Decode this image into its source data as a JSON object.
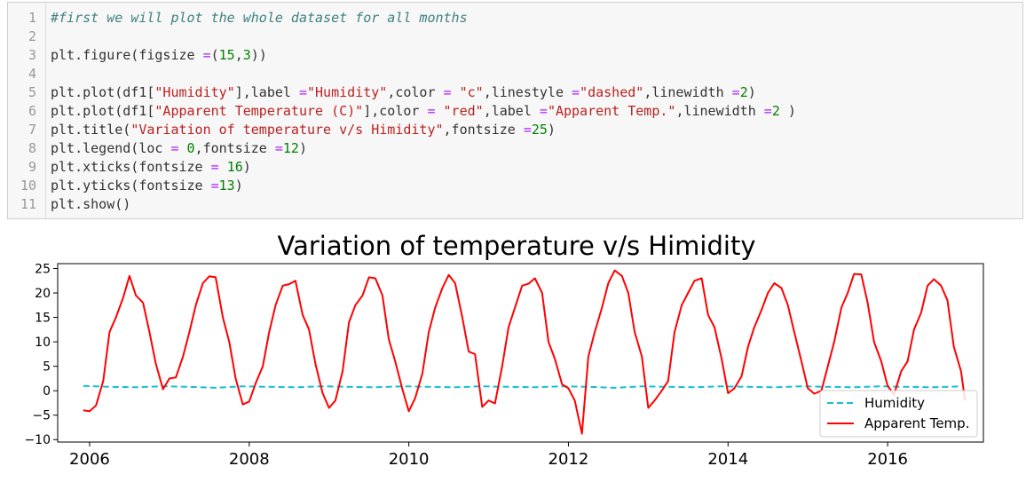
{
  "code_cell": {
    "lines": [
      {
        "n": "1",
        "parts": [
          {
            "t": "#first we will plot the whole dataset for all months",
            "c": "cmt"
          }
        ]
      },
      {
        "n": "2",
        "parts": []
      },
      {
        "n": "3",
        "parts": [
          {
            "t": "plt.figure(figsize ",
            "c": ""
          },
          {
            "t": "=",
            "c": "op"
          },
          {
            "t": "(",
            "c": ""
          },
          {
            "t": "15",
            "c": "num"
          },
          {
            "t": ",",
            "c": ""
          },
          {
            "t": "3",
            "c": "num"
          },
          {
            "t": "))",
            "c": ""
          }
        ]
      },
      {
        "n": "4",
        "parts": []
      },
      {
        "n": "5",
        "parts": [
          {
            "t": "plt.plot(df1[",
            "c": ""
          },
          {
            "t": "\"Humidity\"",
            "c": "str"
          },
          {
            "t": "],label ",
            "c": ""
          },
          {
            "t": "=",
            "c": "op"
          },
          {
            "t": "\"Humidity\"",
            "c": "str"
          },
          {
            "t": ",color ",
            "c": ""
          },
          {
            "t": "=",
            "c": "op"
          },
          {
            "t": " ",
            "c": ""
          },
          {
            "t": "\"c\"",
            "c": "str"
          },
          {
            "t": ",linestyle ",
            "c": ""
          },
          {
            "t": "=",
            "c": "op"
          },
          {
            "t": "\"dashed\"",
            "c": "str"
          },
          {
            "t": ",linewidth ",
            "c": ""
          },
          {
            "t": "=",
            "c": "op"
          },
          {
            "t": "2",
            "c": "num"
          },
          {
            "t": ")",
            "c": ""
          }
        ]
      },
      {
        "n": "6",
        "parts": [
          {
            "t": "plt.plot(df1[",
            "c": ""
          },
          {
            "t": "\"Apparent Temperature (C)\"",
            "c": "str"
          },
          {
            "t": "],color ",
            "c": ""
          },
          {
            "t": "=",
            "c": "op"
          },
          {
            "t": " ",
            "c": ""
          },
          {
            "t": "\"red\"",
            "c": "str"
          },
          {
            "t": ",label ",
            "c": ""
          },
          {
            "t": "=",
            "c": "op"
          },
          {
            "t": "\"Apparent Temp.\"",
            "c": "str"
          },
          {
            "t": ",linewidth ",
            "c": ""
          },
          {
            "t": "=",
            "c": "op"
          },
          {
            "t": "2",
            "c": "num"
          },
          {
            "t": " )",
            "c": ""
          }
        ]
      },
      {
        "n": "7",
        "parts": [
          {
            "t": "plt.title(",
            "c": ""
          },
          {
            "t": "\"Variation of temperature v/s Himidity\"",
            "c": "str"
          },
          {
            "t": ",fontsize ",
            "c": ""
          },
          {
            "t": "=",
            "c": "op"
          },
          {
            "t": "25",
            "c": "num"
          },
          {
            "t": ")",
            "c": ""
          }
        ]
      },
      {
        "n": "8",
        "parts": [
          {
            "t": "plt.legend(loc ",
            "c": ""
          },
          {
            "t": "=",
            "c": "op"
          },
          {
            "t": " ",
            "c": ""
          },
          {
            "t": "0",
            "c": "num"
          },
          {
            "t": ",fontsize ",
            "c": ""
          },
          {
            "t": "=",
            "c": "op"
          },
          {
            "t": "12",
            "c": "num"
          },
          {
            "t": ")",
            "c": ""
          }
        ]
      },
      {
        "n": "9",
        "parts": [
          {
            "t": "plt.xticks(fontsize ",
            "c": ""
          },
          {
            "t": "=",
            "c": "op"
          },
          {
            "t": " ",
            "c": ""
          },
          {
            "t": "16",
            "c": "num"
          },
          {
            "t": ")",
            "c": ""
          }
        ]
      },
      {
        "n": "10",
        "parts": [
          {
            "t": "plt.yticks(fontsize ",
            "c": ""
          },
          {
            "t": "=",
            "c": "op"
          },
          {
            "t": "13",
            "c": "num"
          },
          {
            "t": ")",
            "c": ""
          }
        ]
      },
      {
        "n": "11",
        "parts": [
          {
            "t": "plt.show()",
            "c": ""
          }
        ]
      }
    ]
  },
  "chart_data": {
    "type": "line",
    "title": "Variation of temperature v/s Himidity",
    "xlabel": "",
    "ylabel": "",
    "xlim": [
      2005.6,
      2017.2
    ],
    "ylim": [
      -10.5,
      26
    ],
    "grid": false,
    "legend_position": "bottom-right",
    "x_ticks": [
      {
        "v": 2006,
        "label": "2006"
      },
      {
        "v": 2008,
        "label": "2008"
      },
      {
        "v": 2010,
        "label": "2010"
      },
      {
        "v": 2012,
        "label": "2012"
      },
      {
        "v": 2014,
        "label": "2014"
      },
      {
        "v": 2016,
        "label": "2016"
      }
    ],
    "y_ticks": [
      {
        "v": 25,
        "label": "25"
      },
      {
        "v": 20,
        "label": "20"
      },
      {
        "v": 15,
        "label": "15"
      },
      {
        "v": 10,
        "label": "10"
      },
      {
        "v": 5,
        "label": "5"
      },
      {
        "v": 0,
        "label": "0"
      },
      {
        "v": -5,
        "label": "−5"
      },
      {
        "v": -10,
        "label": "−10"
      }
    ],
    "series": [
      {
        "name": "Humidity",
        "color": "#17becf",
        "dash": "dashed",
        "points": [
          [
            2005.92,
            1.0
          ],
          [
            2006.25,
            0.8
          ],
          [
            2006.58,
            0.7
          ],
          [
            2006.92,
            0.9
          ],
          [
            2007.25,
            0.8
          ],
          [
            2007.58,
            0.6
          ],
          [
            2007.92,
            0.9
          ],
          [
            2008.25,
            0.8
          ],
          [
            2008.58,
            0.7
          ],
          [
            2008.92,
            0.9
          ],
          [
            2009.25,
            0.8
          ],
          [
            2009.58,
            0.7
          ],
          [
            2009.92,
            0.9
          ],
          [
            2010.25,
            0.8
          ],
          [
            2010.58,
            0.7
          ],
          [
            2010.92,
            0.9
          ],
          [
            2011.25,
            0.8
          ],
          [
            2011.58,
            0.7
          ],
          [
            2011.92,
            0.9
          ],
          [
            2012.25,
            0.8
          ],
          [
            2012.58,
            0.6
          ],
          [
            2012.92,
            0.9
          ],
          [
            2013.25,
            0.8
          ],
          [
            2013.58,
            0.7
          ],
          [
            2013.92,
            0.9
          ],
          [
            2014.25,
            0.8
          ],
          [
            2014.58,
            0.7
          ],
          [
            2014.92,
            0.9
          ],
          [
            2015.25,
            0.8
          ],
          [
            2015.58,
            0.7
          ],
          [
            2015.92,
            0.9
          ],
          [
            2016.25,
            0.8
          ],
          [
            2016.58,
            0.7
          ],
          [
            2016.92,
            0.9
          ]
        ]
      },
      {
        "name": "Apparent Temp.",
        "color": "#ff0000",
        "dash": "solid",
        "points": [
          [
            2005.92,
            -4.0
          ],
          [
            2006.0,
            -4.2
          ],
          [
            2006.08,
            -3.0
          ],
          [
            2006.17,
            2.0
          ],
          [
            2006.25,
            12.0
          ],
          [
            2006.33,
            15.0
          ],
          [
            2006.42,
            19.0
          ],
          [
            2006.5,
            23.5
          ],
          [
            2006.58,
            19.5
          ],
          [
            2006.67,
            18.0
          ],
          [
            2006.75,
            12.0
          ],
          [
            2006.83,
            5.5
          ],
          [
            2006.92,
            0.3
          ],
          [
            2007.0,
            2.5
          ],
          [
            2007.08,
            2.7
          ],
          [
            2007.17,
            7.0
          ],
          [
            2007.25,
            12.0
          ],
          [
            2007.33,
            17.5
          ],
          [
            2007.42,
            22.0
          ],
          [
            2007.5,
            23.4
          ],
          [
            2007.58,
            23.2
          ],
          [
            2007.67,
            15.0
          ],
          [
            2007.75,
            10.0
          ],
          [
            2007.83,
            2.5
          ],
          [
            2007.92,
            -2.8
          ],
          [
            2008.0,
            -2.2
          ],
          [
            2008.08,
            1.5
          ],
          [
            2008.17,
            5.0
          ],
          [
            2008.25,
            12.0
          ],
          [
            2008.33,
            17.5
          ],
          [
            2008.42,
            21.5
          ],
          [
            2008.5,
            21.8
          ],
          [
            2008.58,
            22.5
          ],
          [
            2008.67,
            15.5
          ],
          [
            2008.75,
            12.5
          ],
          [
            2008.83,
            5.5
          ],
          [
            2008.92,
            -0.5
          ],
          [
            2009.0,
            -3.5
          ],
          [
            2009.08,
            -2.0
          ],
          [
            2009.17,
            4.0
          ],
          [
            2009.25,
            14.0
          ],
          [
            2009.33,
            17.5
          ],
          [
            2009.42,
            19.5
          ],
          [
            2009.5,
            23.2
          ],
          [
            2009.58,
            23.0
          ],
          [
            2009.67,
            19.5
          ],
          [
            2009.75,
            10.5
          ],
          [
            2009.83,
            6.0
          ],
          [
            2009.92,
            0.3
          ],
          [
            2010.0,
            -4.2
          ],
          [
            2010.08,
            -1.5
          ],
          [
            2010.17,
            3.5
          ],
          [
            2010.25,
            12.0
          ],
          [
            2010.33,
            17.0
          ],
          [
            2010.42,
            21.0
          ],
          [
            2010.5,
            23.7
          ],
          [
            2010.58,
            22.0
          ],
          [
            2010.67,
            15.0
          ],
          [
            2010.75,
            8.0
          ],
          [
            2010.83,
            7.5
          ],
          [
            2010.92,
            -3.3
          ],
          [
            2011.0,
            -2.0
          ],
          [
            2011.08,
            -2.6
          ],
          [
            2011.17,
            5.0
          ],
          [
            2011.25,
            13.0
          ],
          [
            2011.33,
            17.0
          ],
          [
            2011.42,
            21.5
          ],
          [
            2011.5,
            21.9
          ],
          [
            2011.58,
            23.0
          ],
          [
            2011.67,
            20.0
          ],
          [
            2011.75,
            10.0
          ],
          [
            2011.83,
            6.5
          ],
          [
            2011.92,
            1.3
          ],
          [
            2012.0,
            0.5
          ],
          [
            2012.08,
            -2.0
          ],
          [
            2012.17,
            -8.8
          ],
          [
            2012.25,
            7.0
          ],
          [
            2012.33,
            12.0
          ],
          [
            2012.42,
            17.0
          ],
          [
            2012.5,
            22.0
          ],
          [
            2012.58,
            24.6
          ],
          [
            2012.67,
            23.5
          ],
          [
            2012.75,
            20.0
          ],
          [
            2012.83,
            12.0
          ],
          [
            2012.92,
            7.0
          ],
          [
            2013.0,
            -3.5
          ],
          [
            2013.08,
            -2.0
          ],
          [
            2013.17,
            0.0
          ],
          [
            2013.25,
            2.0
          ],
          [
            2013.33,
            12.0
          ],
          [
            2013.42,
            17.5
          ],
          [
            2013.5,
            20.0
          ],
          [
            2013.58,
            22.5
          ],
          [
            2013.67,
            23.0
          ],
          [
            2013.75,
            15.5
          ],
          [
            2013.83,
            13.0
          ],
          [
            2013.92,
            6.5
          ],
          [
            2014.0,
            -0.5
          ],
          [
            2014.08,
            0.5
          ],
          [
            2014.17,
            3.0
          ],
          [
            2014.25,
            9.0
          ],
          [
            2014.33,
            13.0
          ],
          [
            2014.42,
            16.5
          ],
          [
            2014.5,
            20.0
          ],
          [
            2014.58,
            22.0
          ],
          [
            2014.67,
            21.0
          ],
          [
            2014.75,
            17.5
          ],
          [
            2014.83,
            12.0
          ],
          [
            2014.92,
            6.0
          ],
          [
            2015.0,
            0.5
          ],
          [
            2015.08,
            -0.6
          ],
          [
            2015.17,
            0.0
          ],
          [
            2015.25,
            5.0
          ],
          [
            2015.33,
            10.0
          ],
          [
            2015.42,
            17.0
          ],
          [
            2015.5,
            20.0
          ],
          [
            2015.58,
            23.9
          ],
          [
            2015.67,
            23.8
          ],
          [
            2015.75,
            18.0
          ],
          [
            2015.83,
            10.0
          ],
          [
            2015.92,
            6.0
          ],
          [
            2016.0,
            1.0
          ],
          [
            2016.08,
            -0.8
          ],
          [
            2016.17,
            4.0
          ],
          [
            2016.25,
            6.0
          ],
          [
            2016.33,
            12.5
          ],
          [
            2016.42,
            16.0
          ],
          [
            2016.5,
            21.5
          ],
          [
            2016.58,
            22.8
          ],
          [
            2016.67,
            21.5
          ],
          [
            2016.75,
            18.5
          ],
          [
            2016.83,
            9.0
          ],
          [
            2016.92,
            4.0
          ],
          [
            2016.97,
            -2.0
          ]
        ]
      }
    ]
  }
}
